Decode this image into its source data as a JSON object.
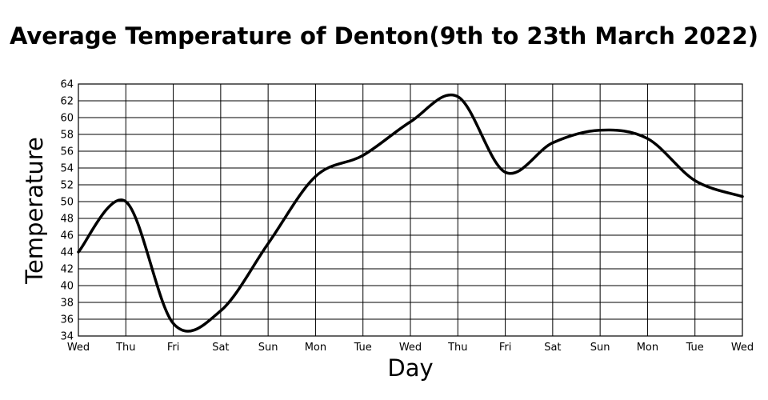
{
  "chart_data": {
    "type": "line",
    "title": "Average Temperature of Denton(9th to 23th March 2022)",
    "xlabel": "Day",
    "ylabel": "Temperature",
    "categories": [
      "Wed",
      "Thu",
      "Fri",
      "Sat",
      "Sun",
      "Mon",
      "Tue",
      "Wed",
      "Thu",
      "Fri",
      "Sat",
      "Sun",
      "Mon",
      "Tue",
      "Wed"
    ],
    "ylim": [
      34,
      64
    ],
    "yticks": [
      34,
      36,
      38,
      40,
      42,
      44,
      46,
      48,
      50,
      52,
      54,
      56,
      58,
      60,
      62,
      64
    ],
    "grid": true,
    "legend": "none",
    "series": [
      {
        "values": [
          44,
          50,
          35.5,
          37,
          45,
          53,
          55.5,
          59.5,
          62.5,
          53.5,
          57,
          58.5,
          57.5,
          52.5,
          50.6
        ]
      }
    ]
  }
}
